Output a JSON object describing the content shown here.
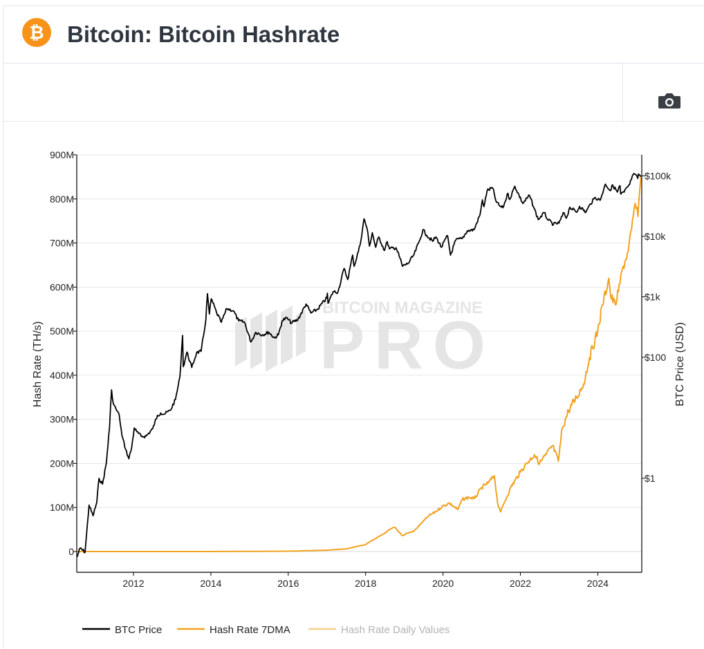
{
  "header": {
    "title": "Bitcoin: Bitcoin Hashrate",
    "logo_icon": "bitcoin-logo-icon",
    "logo_glyph": "₿",
    "logo_color": "#f7931a"
  },
  "toolbar": {
    "screenshot_icon": "camera-icon"
  },
  "watermark": {
    "top_text": "BITCOIN MAGAZINE",
    "main_text": "PRO"
  },
  "colors": {
    "btc_price": "#000000",
    "hash_rate_7dma": "#f2a11f",
    "hash_rate_daily": "#f7cf8e",
    "grid": "#e6e6e6"
  },
  "chart_data": {
    "type": "line",
    "title": "",
    "x_axis": {
      "range": [
        "2010-07-15",
        "2025-02-20"
      ],
      "ticks": [
        "2012",
        "2014",
        "2016",
        "2018",
        "2020",
        "2022",
        "2024"
      ]
    },
    "y_left": {
      "label": "Hash Rate (TH/s)",
      "range": [
        -50000000,
        900000000
      ],
      "ticks": [
        {
          "value": 0,
          "label": "0"
        },
        {
          "value": 100000000,
          "label": "100M"
        },
        {
          "value": 200000000,
          "label": "200M"
        },
        {
          "value": 300000000,
          "label": "300M"
        },
        {
          "value": 400000000,
          "label": "400M"
        },
        {
          "value": 500000000,
          "label": "500M"
        },
        {
          "value": 600000000,
          "label": "600M"
        },
        {
          "value": 700000000,
          "label": "700M"
        },
        {
          "value": 800000000,
          "label": "800M"
        },
        {
          "value": 900000000,
          "label": "900M"
        }
      ]
    },
    "y_right": {
      "label": "BTC Price (USD)",
      "scale": "log",
      "ticks": [
        {
          "value": 1,
          "label": "$1"
        },
        {
          "value": 100,
          "label": "$100"
        },
        {
          "value": 1000,
          "label": "$1k"
        },
        {
          "value": 10000,
          "label": "$10k"
        },
        {
          "value": 100000,
          "label": "$100k"
        }
      ]
    },
    "grid": true,
    "legend_position": "bottom",
    "series": [
      {
        "name": "BTC Price",
        "axis": "right",
        "points": [
          [
            "2010-07-18",
            0.05
          ],
          [
            "2010-08-15",
            0.07
          ],
          [
            "2010-10-01",
            0.06
          ],
          [
            "2010-11-08",
            0.36
          ],
          [
            "2010-12-15",
            0.24
          ],
          [
            "2011-01-20",
            0.4
          ],
          [
            "2011-02-10",
            1.0
          ],
          [
            "2011-03-15",
            0.8
          ],
          [
            "2011-04-20",
            1.8
          ],
          [
            "2011-05-20",
            7.0
          ],
          [
            "2011-06-08",
            29.0
          ],
          [
            "2011-06-25",
            17.0
          ],
          [
            "2011-07-20",
            14.0
          ],
          [
            "2011-08-20",
            11.0
          ],
          [
            "2011-09-15",
            5.0
          ],
          [
            "2011-10-20",
            3.0
          ],
          [
            "2011-11-18",
            2.1
          ],
          [
            "2011-12-15",
            3.2
          ],
          [
            "2012-01-08",
            6.8
          ],
          [
            "2012-02-01",
            5.9
          ],
          [
            "2012-03-15",
            4.9
          ],
          [
            "2012-05-01",
            5.0
          ],
          [
            "2012-07-01",
            6.6
          ],
          [
            "2012-08-15",
            11.0
          ],
          [
            "2012-09-15",
            12.0
          ],
          [
            "2012-10-20",
            11.5
          ],
          [
            "2012-12-15",
            13.3
          ],
          [
            "2013-02-01",
            20.0
          ],
          [
            "2013-03-15",
            47.0
          ],
          [
            "2013-04-09",
            230.0
          ],
          [
            "2013-04-16",
            70.0
          ],
          [
            "2013-05-20",
            122.0
          ],
          [
            "2013-07-05",
            68.0
          ],
          [
            "2013-08-20",
            120.0
          ],
          [
            "2013-10-01",
            125.0
          ],
          [
            "2013-11-15",
            420.0
          ],
          [
            "2013-11-30",
            1130.0
          ],
          [
            "2013-12-18",
            520.0
          ],
          [
            "2014-01-05",
            930.0
          ],
          [
            "2014-02-25",
            540.0
          ],
          [
            "2014-04-10",
            380.0
          ],
          [
            "2014-06-01",
            640.0
          ],
          [
            "2014-08-01",
            590.0
          ],
          [
            "2014-09-20",
            400.0
          ],
          [
            "2014-11-15",
            380.0
          ],
          [
            "2015-01-14",
            180.0
          ],
          [
            "2015-03-01",
            260.0
          ],
          [
            "2015-05-01",
            235.0
          ],
          [
            "2015-07-01",
            260.0
          ],
          [
            "2015-08-24",
            210.0
          ],
          [
            "2015-09-30",
            236.0
          ],
          [
            "2015-11-04",
            400.0
          ],
          [
            "2015-12-15",
            450.0
          ],
          [
            "2016-02-01",
            370.0
          ],
          [
            "2016-04-01",
            420.0
          ],
          [
            "2016-06-18",
            760.0
          ],
          [
            "2016-08-02",
            540.0
          ],
          [
            "2016-10-01",
            615.0
          ],
          [
            "2016-12-31",
            960.0
          ],
          [
            "2017-01-05",
            1150.0
          ],
          [
            "2017-01-12",
            780.0
          ],
          [
            "2017-03-01",
            1220.0
          ],
          [
            "2017-04-15",
            1200.0
          ],
          [
            "2017-06-12",
            2950.0
          ],
          [
            "2017-07-16",
            1930.0
          ],
          [
            "2017-09-01",
            4900.0
          ],
          [
            "2017-09-15",
            3200.0
          ],
          [
            "2017-11-10",
            7200.0
          ],
          [
            "2017-12-17",
            19500.0
          ],
          [
            "2018-01-15",
            13500.0
          ],
          [
            "2018-02-06",
            6900.0
          ],
          [
            "2018-03-05",
            11500.0
          ],
          [
            "2018-04-06",
            6600.0
          ],
          [
            "2018-05-05",
            9800.0
          ],
          [
            "2018-06-28",
            5850.0
          ],
          [
            "2018-07-24",
            8200.0
          ],
          [
            "2018-08-14",
            6200.0
          ],
          [
            "2018-10-15",
            6500.0
          ],
          [
            "2018-11-20",
            4400.0
          ],
          [
            "2018-12-15",
            3200.0
          ],
          [
            "2019-02-08",
            3600.0
          ],
          [
            "2019-04-03",
            5000.0
          ],
          [
            "2019-05-28",
            8800.0
          ],
          [
            "2019-06-26",
            12900.0
          ],
          [
            "2019-08-01",
            10400.0
          ],
          [
            "2019-09-25",
            8300.0
          ],
          [
            "2019-10-26",
            9800.0
          ],
          [
            "2019-12-17",
            6600.0
          ],
          [
            "2020-02-13",
            10300.0
          ],
          [
            "2020-03-12",
            4900.0
          ],
          [
            "2020-05-01",
            8700.0
          ],
          [
            "2020-07-01",
            9200.0
          ],
          [
            "2020-08-17",
            12300.0
          ],
          [
            "2020-10-21",
            12900.0
          ],
          [
            "2020-12-17",
            23000.0
          ],
          [
            "2021-01-08",
            40000.0
          ],
          [
            "2021-01-22",
            31000.0
          ],
          [
            "2021-02-21",
            57000.0
          ],
          [
            "2021-04-14",
            63500.0
          ],
          [
            "2021-05-19",
            37000.0
          ],
          [
            "2021-06-22",
            31500.0
          ],
          [
            "2021-07-20",
            29800.0
          ],
          [
            "2021-09-06",
            51700.0
          ],
          [
            "2021-09-21",
            40700.0
          ],
          [
            "2021-11-10",
            67500.0
          ],
          [
            "2022-01-24",
            35000.0
          ],
          [
            "2022-03-28",
            47500.0
          ],
          [
            "2022-05-11",
            29000.0
          ],
          [
            "2022-06-18",
            19000.0
          ],
          [
            "2022-08-14",
            24500.0
          ],
          [
            "2022-09-21",
            18500.0
          ],
          [
            "2022-11-09",
            15800.0
          ],
          [
            "2022-12-31",
            16550.0
          ],
          [
            "2023-02-16",
            24700.0
          ],
          [
            "2023-03-10",
            20000.0
          ],
          [
            "2023-04-13",
            30400.0
          ],
          [
            "2023-06-15",
            25000.0
          ],
          [
            "2023-07-13",
            31400.0
          ],
          [
            "2023-09-11",
            25000.0
          ],
          [
            "2023-10-24",
            34500.0
          ],
          [
            "2023-12-08",
            44000.0
          ],
          [
            "2024-01-23",
            39500.0
          ],
          [
            "2024-03-14",
            73100.0
          ],
          [
            "2024-05-01",
            57000.0
          ],
          [
            "2024-05-21",
            71000.0
          ],
          [
            "2024-07-05",
            54000.0
          ],
          [
            "2024-07-29",
            69000.0
          ],
          [
            "2024-08-05",
            50000.0
          ],
          [
            "2024-09-06",
            53900.0
          ],
          [
            "2024-10-29",
            72500.0
          ],
          [
            "2024-11-22",
            99000.0
          ],
          [
            "2024-12-17",
            106000.0
          ],
          [
            "2025-01-13",
            91000.0
          ],
          [
            "2025-01-20",
            108000.0
          ],
          [
            "2025-02-10",
            97000.0
          ]
        ]
      },
      {
        "name": "Hash Rate 7DMA",
        "axis": "left",
        "points": [
          [
            "2010-07-18",
            0
          ],
          [
            "2014-01-01",
            0
          ],
          [
            "2016-01-01",
            800000
          ],
          [
            "2017-01-01",
            3000000
          ],
          [
            "2017-07-01",
            6000000
          ],
          [
            "2018-01-01",
            16000000
          ],
          [
            "2018-03-01",
            25000000
          ],
          [
            "2018-06-01",
            37000000
          ],
          [
            "2018-08-20",
            50000000
          ],
          [
            "2018-10-01",
            55000000
          ],
          [
            "2018-11-10",
            45000000
          ],
          [
            "2018-12-15",
            36000000
          ],
          [
            "2019-02-01",
            42000000
          ],
          [
            "2019-04-01",
            46000000
          ],
          [
            "2019-06-15",
            65000000
          ],
          [
            "2019-08-15",
            80000000
          ],
          [
            "2019-10-20",
            90000000
          ],
          [
            "2019-12-31",
            103000000
          ],
          [
            "2020-03-01",
            110000000
          ],
          [
            "2020-05-20",
            95000000
          ],
          [
            "2020-07-01",
            118000000
          ],
          [
            "2020-09-01",
            123000000
          ],
          [
            "2020-10-25",
            120000000
          ],
          [
            "2021-01-01",
            145000000
          ],
          [
            "2021-03-01",
            155000000
          ],
          [
            "2021-05-01",
            172000000
          ],
          [
            "2021-05-31",
            110000000
          ],
          [
            "2021-06-30",
            90000000
          ],
          [
            "2021-08-01",
            110000000
          ],
          [
            "2021-10-01",
            145000000
          ],
          [
            "2021-12-31",
            180000000
          ],
          [
            "2022-03-01",
            200000000
          ],
          [
            "2022-05-15",
            220000000
          ],
          [
            "2022-07-01",
            200000000
          ],
          [
            "2022-09-01",
            220000000
          ],
          [
            "2022-11-01",
            240000000
          ],
          [
            "2022-12-25",
            205000000
          ],
          [
            "2023-01-31",
            280000000
          ],
          [
            "2023-04-01",
            320000000
          ],
          [
            "2023-06-15",
            350000000
          ],
          [
            "2023-08-20",
            380000000
          ],
          [
            "2023-10-15",
            440000000
          ],
          [
            "2023-12-31",
            500000000
          ],
          [
            "2024-02-15",
            560000000
          ],
          [
            "2024-04-15",
            620000000
          ],
          [
            "2024-05-01",
            580000000
          ],
          [
            "2024-06-15",
            560000000
          ],
          [
            "2024-07-15",
            590000000
          ],
          [
            "2024-08-20",
            640000000
          ],
          [
            "2024-10-15",
            680000000
          ],
          [
            "2024-11-15",
            730000000
          ],
          [
            "2024-12-20",
            790000000
          ],
          [
            "2025-01-15",
            760000000
          ],
          [
            "2025-02-01",
            820000000
          ],
          [
            "2025-02-12",
            850000000
          ]
        ]
      },
      {
        "name": "Hash Rate Daily Values",
        "axis": "left",
        "points": []
      }
    ]
  },
  "legend": [
    {
      "label": "BTC Price",
      "color": "#000000",
      "faded": false
    },
    {
      "label": "Hash Rate 7DMA",
      "color": "#f2a11f",
      "faded": false
    },
    {
      "label": "Hash Rate Daily Values",
      "color": "#f7cf8e",
      "faded": true
    }
  ]
}
